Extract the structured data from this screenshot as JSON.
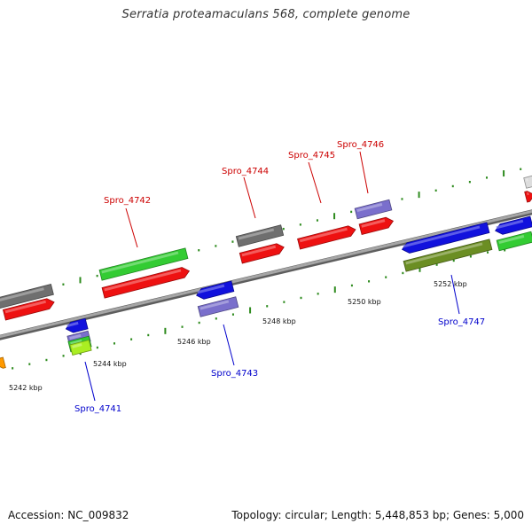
{
  "title": "Serratia proteamaculans 568, complete genome",
  "footer": {
    "accession": "Accession: NC_009832",
    "summary": "Topology: circular; Length: 5,448,853 bp; Genes: 5,000"
  },
  "colors": {
    "backbone": "#8c8c8c",
    "tick": "#2e8b1e",
    "label_top": "#cc0000",
    "label_bottom": "#0000cc",
    "red": "#ee1111",
    "gray": "#6f6f6f",
    "green": "#33cc33",
    "blue": "#1111dd",
    "lavender": "#7a6fcc",
    "olive": "#6b8e23",
    "orange": "#ff9900",
    "lime": "#aaee22",
    "light": "#dddddd"
  },
  "scale_labels": [
    "5242 kbp",
    "5244 kbp",
    "5246 kbp",
    "5248 kbp",
    "5250 kbp",
    "5252 kbp"
  ],
  "gene_labels_top": [
    "Spro_4742",
    "Spro_4744",
    "Spro_4745",
    "Spro_4746"
  ],
  "gene_labels_bottom": [
    "Spro_4741",
    "Spro_4743",
    "Spro_4747"
  ]
}
